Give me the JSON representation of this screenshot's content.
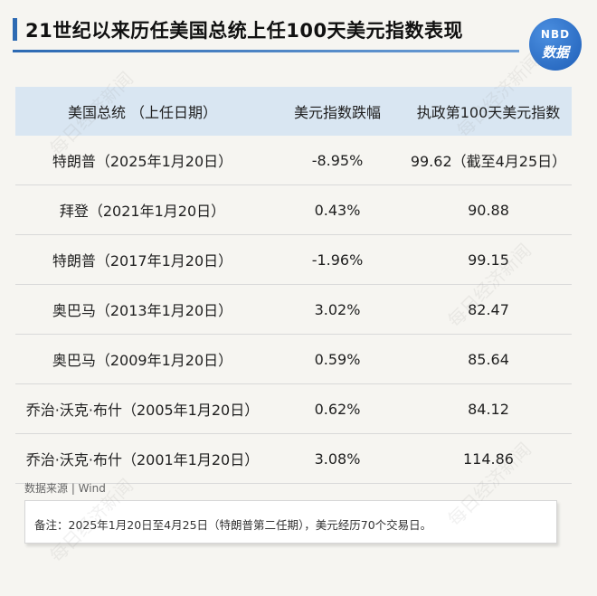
{
  "title": "21世纪以来历任美国总统上任100天美元指数表现",
  "logo": {
    "line1": "NBD",
    "line2": "数据"
  },
  "table": {
    "headers": [
      "美国总统 （上任日期）",
      "美元指数跌幅",
      "执政第100天美元指数"
    ],
    "rows": [
      [
        "特朗普（2025年1月20日）",
        "-8.95%",
        "99.62（截至4月25日）"
      ],
      [
        "拜登（2021年1月20日）",
        "0.43%",
        "90.88"
      ],
      [
        "特朗普（2017年1月20日）",
        "-1.96%",
        "99.15"
      ],
      [
        "奥巴马（2013年1月20日）",
        "3.02%",
        "82.47"
      ],
      [
        "奥巴马（2009年1月20日）",
        "0.59%",
        "85.64"
      ],
      [
        "乔治·沃克·布什（2005年1月20日）",
        "0.62%",
        "84.12"
      ],
      [
        "乔治·沃克·布什（2001年1月20日）",
        "3.08%",
        "114.86"
      ]
    ]
  },
  "source": "数据来源 | Wind",
  "note": "备注：2025年1月20日至4月25日（特朗普第二任期），美元经历70个交易日。",
  "watermark": "每日经济新闻",
  "colors": {
    "accent": "#2d6ab3",
    "header_bg": "#d9e6f2",
    "page_bg": "#f6f5f1"
  }
}
